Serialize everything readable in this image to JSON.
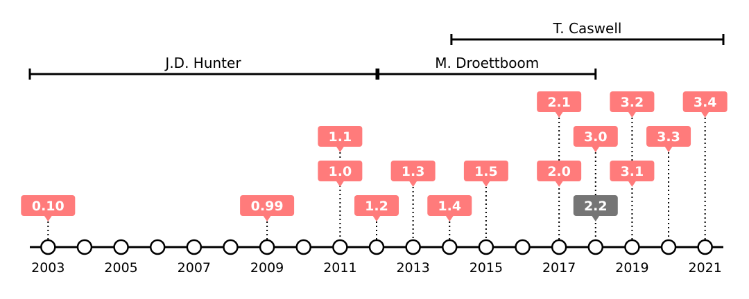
{
  "chart_data": {
    "type": "timeline",
    "title": "",
    "xlim": [
      2002.5,
      2021.5
    ],
    "years": [
      2003,
      2004,
      2005,
      2006,
      2007,
      2008,
      2009,
      2010,
      2011,
      2012,
      2013,
      2014,
      2015,
      2016,
      2017,
      2018,
      2019,
      2020,
      2021
    ],
    "tick_labels": [
      "2003",
      "2005",
      "2007",
      "2009",
      "2011",
      "2013",
      "2015",
      "2017",
      "2019",
      "2021"
    ],
    "releases": [
      {
        "version": "0.10",
        "date": 2003.0,
        "level": 1,
        "highlight": true
      },
      {
        "version": "0.99",
        "date": 2009.0,
        "level": 1,
        "highlight": true
      },
      {
        "version": "1.0",
        "date": 2011.0,
        "level": 2,
        "highlight": true
      },
      {
        "version": "1.1",
        "date": 2011.0,
        "level": 3,
        "highlight": true
      },
      {
        "version": "1.2",
        "date": 2012.0,
        "level": 1,
        "highlight": true
      },
      {
        "version": "1.3",
        "date": 2013.0,
        "level": 2,
        "highlight": true
      },
      {
        "version": "1.4",
        "date": 2014.0,
        "level": 1,
        "highlight": true
      },
      {
        "version": "1.5",
        "date": 2015.0,
        "level": 2,
        "highlight": true
      },
      {
        "version": "2.0",
        "date": 2017.0,
        "level": 2,
        "highlight": true
      },
      {
        "version": "2.1",
        "date": 2017.0,
        "level": 4,
        "highlight": true
      },
      {
        "version": "2.2",
        "date": 2018.0,
        "level": 1,
        "highlight": false
      },
      {
        "version": "3.0",
        "date": 2018.0,
        "level": 3,
        "highlight": true
      },
      {
        "version": "3.1",
        "date": 2019.0,
        "level": 2,
        "highlight": true
      },
      {
        "version": "3.2",
        "date": 2019.0,
        "level": 4,
        "highlight": true
      },
      {
        "version": "3.3",
        "date": 2020.0,
        "level": 3,
        "highlight": true
      },
      {
        "version": "3.4",
        "date": 2021.0,
        "level": 4,
        "highlight": true
      }
    ],
    "eras": [
      {
        "name": "J.D. Hunter",
        "start": 2002.5,
        "end": 2012.0,
        "row": 1
      },
      {
        "name": "M. Droettboom",
        "start": 2012.05,
        "end": 2018.0,
        "row": 1
      },
      {
        "name": "T. Caswell",
        "start": 2014.05,
        "end": 2021.5,
        "row": 2
      }
    ],
    "colors": {
      "highlight": "#ff7b7b",
      "muted": "#757575",
      "axis": "#000000",
      "marker_fill": "#ffffff"
    }
  }
}
